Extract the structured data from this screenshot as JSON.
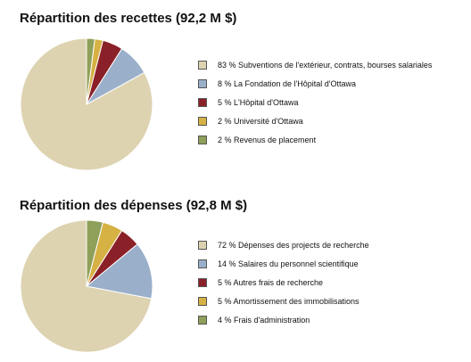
{
  "colors": {
    "tan": "#ddd3b1",
    "blue": "#9aafc9",
    "red": "#8b2128",
    "gold": "#d6b143",
    "green": "#8fa05a",
    "stroke": "#ffffff"
  },
  "chart_data": [
    {
      "type": "pie",
      "title": "Répartition des recettes (92,2 M $)",
      "legend_position": "right",
      "slices": [
        {
          "value": 83,
          "label": "83 % Subventions de l'extérieur, contrats, bourses salariales",
          "color": "#ddd3b1"
        },
        {
          "value": 8,
          "label": "8 % La Fondation de l'Hôpital d'Ottawa",
          "color": "#9aafc9"
        },
        {
          "value": 5,
          "label": "5 % L'Hôpital d'Ottawa",
          "color": "#8b2128"
        },
        {
          "value": 2,
          "label": "2 % Université d'Ottawa",
          "color": "#d6b143"
        },
        {
          "value": 2,
          "label": "2 % Revenus de placement",
          "color": "#8fa05a"
        }
      ]
    },
    {
      "type": "pie",
      "title": "Répartition des dépenses (92,8 M $)",
      "legend_position": "right",
      "slices": [
        {
          "value": 72,
          "label": "72 % Dépenses des projects de recherche",
          "color": "#ddd3b1"
        },
        {
          "value": 14,
          "label": "14 % Salaires du personnel scientifique",
          "color": "#9aafc9"
        },
        {
          "value": 5,
          "label": "5 % Autres frais de recherche",
          "color": "#8b2128"
        },
        {
          "value": 5,
          "label": "5 % Amortissement des immobilisations",
          "color": "#d6b143"
        },
        {
          "value": 4,
          "label": "4 % Frais d'administration",
          "color": "#8fa05a"
        }
      ]
    }
  ]
}
